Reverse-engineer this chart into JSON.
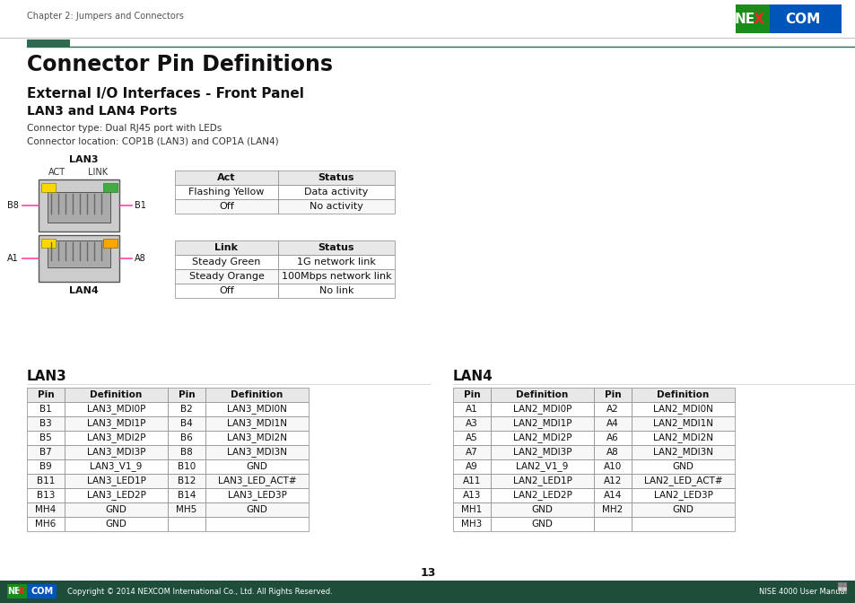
{
  "title": "Connector Pin Definitions",
  "subtitle1": "External I/O Interfaces - Front Panel",
  "subtitle2": "LAN3 and LAN4 Ports",
  "connector_info": [
    "Connector type: Dual RJ45 port with LEDs",
    "Connector location: COP1B (LAN3) and COP1A (LAN4)"
  ],
  "act_table_headers": [
    "Act",
    "Status"
  ],
  "act_table_rows": [
    [
      "Flashing Yellow",
      "Data activity"
    ],
    [
      "Off",
      "No activity"
    ]
  ],
  "link_table_headers": [
    "Link",
    "Status"
  ],
  "link_table_rows": [
    [
      "Steady Green",
      "1G network link"
    ],
    [
      "Steady Orange",
      "100Mbps network link"
    ],
    [
      "Off",
      "No link"
    ]
  ],
  "lan3_title": "LAN3",
  "lan4_title": "LAN4",
  "lan3_headers": [
    "Pin",
    "Definition",
    "Pin",
    "Definition"
  ],
  "lan3_rows": [
    [
      "B1",
      "LAN3_MDI0P",
      "B2",
      "LAN3_MDI0N"
    ],
    [
      "B3",
      "LAN3_MDI1P",
      "B4",
      "LAN3_MDI1N"
    ],
    [
      "B5",
      "LAN3_MDI2P",
      "B6",
      "LAN3_MDI2N"
    ],
    [
      "B7",
      "LAN3_MDI3P",
      "B8",
      "LAN3_MDI3N"
    ],
    [
      "B9",
      "LAN3_V1_9",
      "B10",
      "GND"
    ],
    [
      "B11",
      "LAN3_LED1P",
      "B12",
      "LAN3_LED_ACT#"
    ],
    [
      "B13",
      "LAN3_LED2P",
      "B14",
      "LAN3_LED3P"
    ],
    [
      "MH4",
      "GND",
      "MH5",
      "GND"
    ],
    [
      "MH6",
      "GND",
      "",
      ""
    ]
  ],
  "lan4_headers": [
    "Pin",
    "Definition",
    "Pin",
    "Definition"
  ],
  "lan4_rows": [
    [
      "A1",
      "LAN2_MDI0P",
      "A2",
      "LAN2_MDI0N"
    ],
    [
      "A3",
      "LAN2_MDI1P",
      "A4",
      "LAN2_MDI1N"
    ],
    [
      "A5",
      "LAN2_MDI2P",
      "A6",
      "LAN2_MDI2N"
    ],
    [
      "A7",
      "LAN2_MDI3P",
      "A8",
      "LAN2_MDI3N"
    ],
    [
      "A9",
      "LAN2_V1_9",
      "A10",
      "GND"
    ],
    [
      "A11",
      "LAN2_LED1P",
      "A12",
      "LAN2_LED_ACT#"
    ],
    [
      "A13",
      "LAN2_LED2P",
      "A14",
      "LAN2_LED3P"
    ],
    [
      "MH1",
      "GND",
      "MH2",
      "GND"
    ],
    [
      "MH3",
      "GND",
      "",
      ""
    ]
  ],
  "dark_green": "#2d6a4f",
  "footer_bg": "#1e4d3a",
  "page_num": "13",
  "footer_left": "Copyright © 2014 NEXCOM International Co., Ltd. All Rights Reserved.",
  "footer_right": "NISE 4000 User Manual",
  "chapter_text": "Chapter 2: Jumpers and Connectors",
  "bg_color": "#ffffff",
  "nexcom_blue": "#0066cc",
  "nexcom_green": "#2d7a2d"
}
